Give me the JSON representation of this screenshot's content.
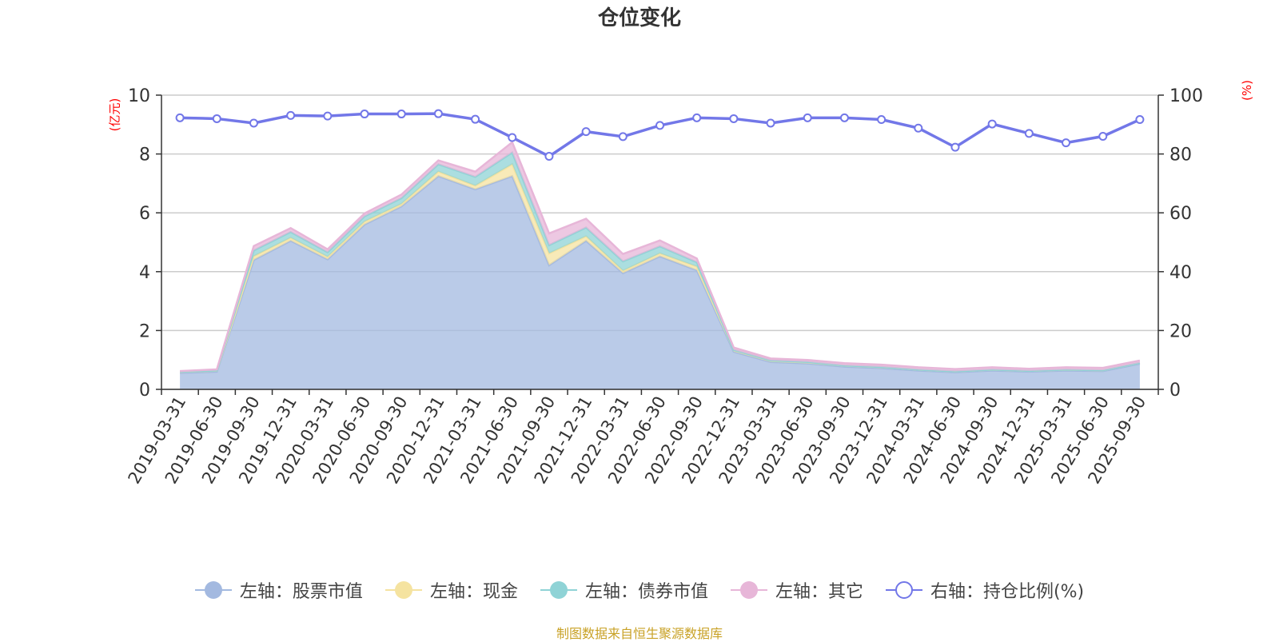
{
  "title": "仓位变化",
  "footer": "制图数据来自恒生聚源数据库",
  "chart_data": {
    "type": "area",
    "title": "仓位变化",
    "left_axis_unit": "(亿元)",
    "right_axis_unit": "(%)",
    "ylim_left": [
      0,
      10
    ],
    "ylim_right": [
      0,
      100
    ],
    "yticks_left": [
      0,
      2,
      4,
      6,
      8,
      10
    ],
    "yticks_right": [
      0,
      20,
      40,
      60,
      80,
      100
    ],
    "grid": true,
    "legend_position": "bottom",
    "stacked": true,
    "categories": [
      "2019-03-31",
      "2019-06-30",
      "2019-09-30",
      "2019-12-31",
      "2020-03-31",
      "2020-06-30",
      "2020-09-30",
      "2020-12-31",
      "2021-03-31",
      "2021-06-30",
      "2021-09-30",
      "2021-12-31",
      "2022-03-31",
      "2022-06-30",
      "2022-09-30",
      "2022-12-31",
      "2023-03-31",
      "2023-06-30",
      "2023-09-30",
      "2023-12-31",
      "2024-03-31",
      "2024-06-30",
      "2024-09-30",
      "2024-12-31",
      "2025-03-31",
      "2025-06-30",
      "2025-09-30"
    ],
    "series": [
      {
        "name": "左轴：股票市值",
        "axis": "left",
        "color": "#a3b9e0",
        "values": [
          0.56,
          0.6,
          4.4,
          5.05,
          4.42,
          5.6,
          6.22,
          7.25,
          6.8,
          7.25,
          4.22,
          5.05,
          3.95,
          4.52,
          4.05,
          1.28,
          0.93,
          0.88,
          0.77,
          0.72,
          0.64,
          0.58,
          0.64,
          0.6,
          0.64,
          0.62,
          0.87
        ]
      },
      {
        "name": "左轴：现金",
        "axis": "left",
        "color": "#f5e3a0",
        "values": [
          0.04,
          0.04,
          0.12,
          0.1,
          0.08,
          0.1,
          0.08,
          0.15,
          0.12,
          0.4,
          0.4,
          0.15,
          0.08,
          0.1,
          0.12,
          0.06,
          0.05,
          0.05,
          0.04,
          0.04,
          0.03,
          0.03,
          0.03,
          0.03,
          0.03,
          0.03,
          0.03
        ]
      },
      {
        "name": "左轴：债券市值",
        "axis": "left",
        "color": "#8fd3d6",
        "values": [
          0.0,
          0.0,
          0.2,
          0.2,
          0.16,
          0.18,
          0.2,
          0.25,
          0.3,
          0.4,
          0.28,
          0.3,
          0.32,
          0.24,
          0.15,
          0.0,
          0.0,
          0.0,
          0.0,
          0.0,
          0.0,
          0.0,
          0.0,
          0.0,
          0.0,
          0.0,
          0.0
        ]
      },
      {
        "name": "左轴：其它",
        "axis": "left",
        "color": "#e7b6d8",
        "values": [
          0.02,
          0.04,
          0.15,
          0.13,
          0.1,
          0.1,
          0.12,
          0.13,
          0.18,
          0.35,
          0.4,
          0.3,
          0.25,
          0.2,
          0.13,
          0.08,
          0.07,
          0.07,
          0.08,
          0.08,
          0.08,
          0.08,
          0.08,
          0.07,
          0.08,
          0.08,
          0.08
        ]
      },
      {
        "name": "右轴：持仓比例(%)",
        "axis": "right",
        "color": "#7277e8",
        "values": [
          92.3,
          92.0,
          90.5,
          93.1,
          92.9,
          93.6,
          93.6,
          93.7,
          91.8,
          85.6,
          79.2,
          87.6,
          85.9,
          89.7,
          92.3,
          92.0,
          90.5,
          92.3,
          92.3,
          91.7,
          88.8,
          82.3,
          90.2,
          87.0,
          83.8,
          86.0,
          91.7
        ]
      }
    ]
  },
  "colors": {
    "axis_unit": "#ff0000",
    "footer": "#c9a227",
    "text": "#333333",
    "grid": "#cccccc"
  }
}
